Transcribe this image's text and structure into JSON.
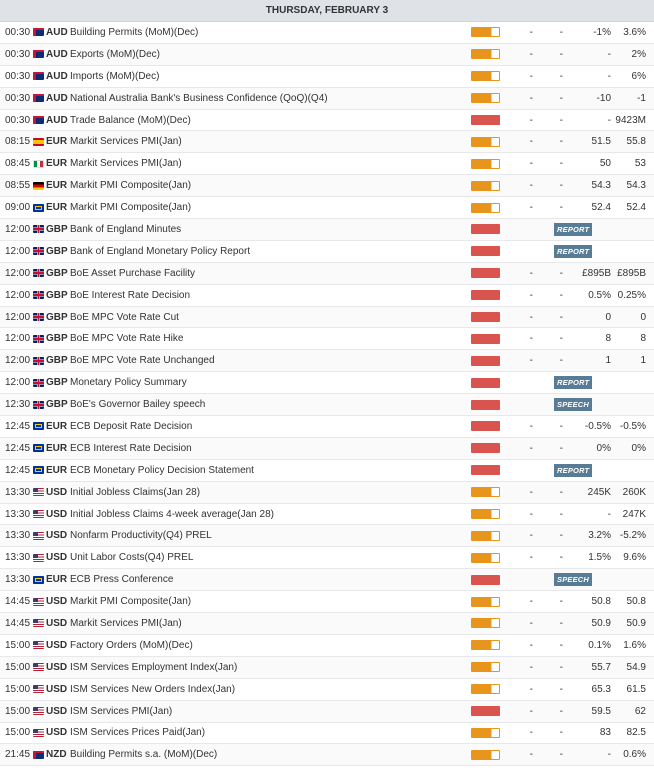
{
  "header": {
    "date": "THURSDAY, FEBRUARY 3"
  },
  "colors": {
    "medium_impact": "#e8951d",
    "high_impact": "#d9534f",
    "badge": "#587c95"
  },
  "events": [
    {
      "time": "00:30",
      "flag": "au",
      "currency": "AUD",
      "event": "Building Permits (MoM)(Dec)",
      "impact": "medium",
      "a": "-",
      "b": "-",
      "actual": "-1%",
      "previous": "3.6%"
    },
    {
      "time": "00:30",
      "flag": "au",
      "currency": "AUD",
      "event": "Exports (MoM)(Dec)",
      "impact": "medium",
      "a": "-",
      "b": "-",
      "actual": "-",
      "previous": "2%"
    },
    {
      "time": "00:30",
      "flag": "au",
      "currency": "AUD",
      "event": "Imports (MoM)(Dec)",
      "impact": "medium",
      "a": "-",
      "b": "-",
      "actual": "-",
      "previous": "6%"
    },
    {
      "time": "00:30",
      "flag": "au",
      "currency": "AUD",
      "event": "National Australia Bank's Business Confidence (QoQ)(Q4)",
      "impact": "medium",
      "a": "-",
      "b": "-",
      "actual": "-10",
      "previous": "-1"
    },
    {
      "time": "00:30",
      "flag": "au",
      "currency": "AUD",
      "event": "Trade Balance (MoM)(Dec)",
      "impact": "high",
      "a": "-",
      "b": "-",
      "actual": "-",
      "previous": "9423M"
    },
    {
      "time": "08:15",
      "flag": "es",
      "currency": "EUR",
      "event": "Markit Services PMI(Jan)",
      "impact": "medium",
      "a": "-",
      "b": "-",
      "actual": "51.5",
      "previous": "55.8"
    },
    {
      "time": "08:45",
      "flag": "it",
      "currency": "EUR",
      "event": "Markit Services PMI(Jan)",
      "impact": "medium",
      "a": "-",
      "b": "-",
      "actual": "50",
      "previous": "53"
    },
    {
      "time": "08:55",
      "flag": "de",
      "currency": "EUR",
      "event": "Markit PMI Composite(Jan)",
      "impact": "medium",
      "a": "-",
      "b": "-",
      "actual": "54.3",
      "previous": "54.3"
    },
    {
      "time": "09:00",
      "flag": "eu",
      "currency": "EUR",
      "event": "Markit PMI Composite(Jan)",
      "impact": "medium",
      "a": "-",
      "b": "-",
      "actual": "52.4",
      "previous": "52.4"
    },
    {
      "time": "12:00",
      "flag": "gb",
      "currency": "GBP",
      "event": "Bank of England Minutes",
      "impact": "high",
      "badge": "REPORT"
    },
    {
      "time": "12:00",
      "flag": "gb",
      "currency": "GBP",
      "event": "Bank of England Monetary Policy Report",
      "impact": "high",
      "badge": "REPORT"
    },
    {
      "time": "12:00",
      "flag": "gb",
      "currency": "GBP",
      "event": "BoE Asset Purchase Facility",
      "impact": "high",
      "a": "-",
      "b": "-",
      "actual": "£895B",
      "previous": "£895B"
    },
    {
      "time": "12:00",
      "flag": "gb",
      "currency": "GBP",
      "event": "BoE Interest Rate Decision",
      "impact": "high",
      "a": "-",
      "b": "-",
      "actual": "0.5%",
      "previous": "0.25%"
    },
    {
      "time": "12:00",
      "flag": "gb",
      "currency": "GBP",
      "event": "BoE MPC Vote Rate Cut",
      "impact": "high",
      "a": "-",
      "b": "-",
      "actual": "0",
      "previous": "0"
    },
    {
      "time": "12:00",
      "flag": "gb",
      "currency": "GBP",
      "event": "BoE MPC Vote Rate Hike",
      "impact": "high",
      "a": "-",
      "b": "-",
      "actual": "8",
      "previous": "8"
    },
    {
      "time": "12:00",
      "flag": "gb",
      "currency": "GBP",
      "event": "BoE MPC Vote Rate Unchanged",
      "impact": "high",
      "a": "-",
      "b": "-",
      "actual": "1",
      "previous": "1"
    },
    {
      "time": "12:00",
      "flag": "gb",
      "currency": "GBP",
      "event": "Monetary Policy Summary",
      "impact": "high",
      "badge": "REPORT"
    },
    {
      "time": "12:30",
      "flag": "gb",
      "currency": "GBP",
      "event": "BoE's Governor Bailey speech",
      "impact": "high",
      "badge": "SPEECH"
    },
    {
      "time": "12:45",
      "flag": "eu",
      "currency": "EUR",
      "event": "ECB Deposit Rate Decision",
      "impact": "high",
      "a": "-",
      "b": "-",
      "actual": "-0.5%",
      "previous": "-0.5%"
    },
    {
      "time": "12:45",
      "flag": "eu",
      "currency": "EUR",
      "event": "ECB Interest Rate Decision",
      "impact": "high",
      "a": "-",
      "b": "-",
      "actual": "0%",
      "previous": "0%"
    },
    {
      "time": "12:45",
      "flag": "eu",
      "currency": "EUR",
      "event": "ECB Monetary Policy Decision Statement",
      "impact": "high",
      "badge": "REPORT"
    },
    {
      "time": "13:30",
      "flag": "us",
      "currency": "USD",
      "event": "Initial Jobless Claims(Jan 28)",
      "impact": "medium",
      "a": "-",
      "b": "-",
      "actual": "245K",
      "previous": "260K"
    },
    {
      "time": "13:30",
      "flag": "us",
      "currency": "USD",
      "event": "Initial Jobless Claims 4-week average(Jan 28)",
      "impact": "medium",
      "a": "-",
      "b": "-",
      "actual": "-",
      "previous": "247K"
    },
    {
      "time": "13:30",
      "flag": "us",
      "currency": "USD",
      "event": "Nonfarm Productivity(Q4) PREL",
      "impact": "medium",
      "a": "-",
      "b": "-",
      "actual": "3.2%",
      "previous": "-5.2%"
    },
    {
      "time": "13:30",
      "flag": "us",
      "currency": "USD",
      "event": "Unit Labor Costs(Q4) PREL",
      "impact": "medium",
      "a": "-",
      "b": "-",
      "actual": "1.5%",
      "previous": "9.6%"
    },
    {
      "time": "13:30",
      "flag": "eu",
      "currency": "EUR",
      "event": "ECB Press Conference",
      "impact": "high",
      "badge": "SPEECH"
    },
    {
      "time": "14:45",
      "flag": "us",
      "currency": "USD",
      "event": "Markit PMI Composite(Jan)",
      "impact": "medium",
      "a": "-",
      "b": "-",
      "actual": "50.8",
      "previous": "50.8"
    },
    {
      "time": "14:45",
      "flag": "us",
      "currency": "USD",
      "event": "Markit Services PMI(Jan)",
      "impact": "medium",
      "a": "-",
      "b": "-",
      "actual": "50.9",
      "previous": "50.9"
    },
    {
      "time": "15:00",
      "flag": "us",
      "currency": "USD",
      "event": "Factory Orders (MoM)(Dec)",
      "impact": "medium",
      "a": "-",
      "b": "-",
      "actual": "0.1%",
      "previous": "1.6%"
    },
    {
      "time": "15:00",
      "flag": "us",
      "currency": "USD",
      "event": "ISM Services Employment Index(Jan)",
      "impact": "medium",
      "a": "-",
      "b": "-",
      "actual": "55.7",
      "previous": "54.9"
    },
    {
      "time": "15:00",
      "flag": "us",
      "currency": "USD",
      "event": "ISM Services New Orders Index(Jan)",
      "impact": "medium",
      "a": "-",
      "b": "-",
      "actual": "65.3",
      "previous": "61.5"
    },
    {
      "time": "15:00",
      "flag": "us",
      "currency": "USD",
      "event": "ISM Services PMI(Jan)",
      "impact": "high",
      "a": "-",
      "b": "-",
      "actual": "59.5",
      "previous": "62"
    },
    {
      "time": "15:00",
      "flag": "us",
      "currency": "USD",
      "event": "ISM Services Prices Paid(Jan)",
      "impact": "medium",
      "a": "-",
      "b": "-",
      "actual": "83",
      "previous": "82.5"
    },
    {
      "time": "21:45",
      "flag": "nz",
      "currency": "NZD",
      "event": "Building Permits s.a. (MoM)(Dec)",
      "impact": "medium",
      "a": "-",
      "b": "-",
      "actual": "-",
      "previous": "0.6%"
    }
  ]
}
